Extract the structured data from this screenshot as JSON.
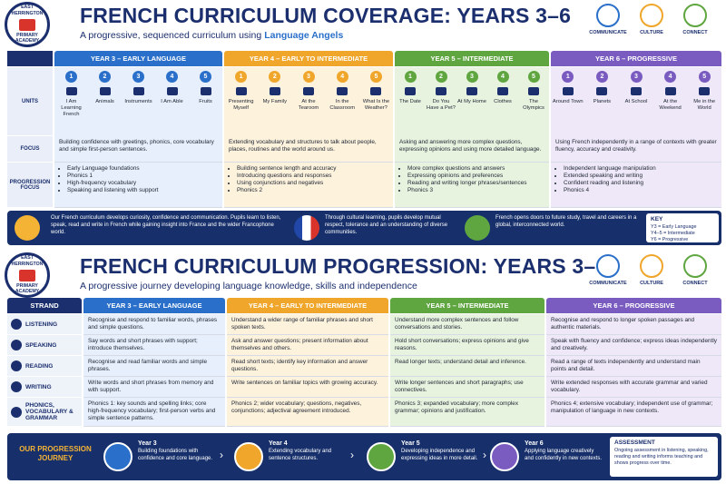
{
  "coverage": {
    "logo": [
      "EAST HERRINGTON",
      "PRIMARY ACADEMY"
    ],
    "title": "FRENCH CURRICULUM COVERAGE: YEARS 3–6",
    "subtitle": "A progressive, sequenced curriculum using",
    "subtitle_highlight": "Language Angels",
    "icons": [
      "COMMUNICATE",
      "CULTURE",
      "CONNECT"
    ],
    "row_labels": [
      "UNITS",
      "FOCUS",
      "PROGRESSION FOCUS"
    ],
    "years": [
      {
        "heading": "YEAR 3 – EARLY LANGUAGE",
        "units": [
          {
            "number": 1,
            "name": "I Am Learning French"
          },
          {
            "number": 2,
            "name": "Animals"
          },
          {
            "number": 3,
            "name": "Instruments"
          },
          {
            "number": 4,
            "name": "I Am Able"
          },
          {
            "number": 5,
            "name": "Fruits"
          }
        ],
        "focus": "Building confidence with greetings, phonics, core vocabulary and simple first-person sentences.",
        "progression": [
          "Early Language foundations",
          "Phonics 1",
          "High-frequency vocabulary",
          "Speaking and listening with support"
        ]
      },
      {
        "heading": "YEAR 4 – EARLY TO INTERMEDIATE",
        "units": [
          {
            "number": 1,
            "name": "Presenting Myself"
          },
          {
            "number": 2,
            "name": "My Family"
          },
          {
            "number": 3,
            "name": "At the Tearoom"
          },
          {
            "number": 4,
            "name": "In the Classroom"
          },
          {
            "number": 5,
            "name": "What Is the Weather?"
          }
        ],
        "focus": "Extending vocabulary and structures to talk about people, places, routines and the world around us.",
        "progression": [
          "Building sentence length and accuracy",
          "Introducing questions and responses",
          "Using conjunctions and negatives",
          "Phonics 2"
        ]
      },
      {
        "heading": "YEAR 5 – INTERMEDIATE",
        "units": [
          {
            "number": 1,
            "name": "The Date"
          },
          {
            "number": 2,
            "name": "Do You Have a Pet?"
          },
          {
            "number": 3,
            "name": "At My Home"
          },
          {
            "number": 4,
            "name": "Clothes"
          },
          {
            "number": 5,
            "name": "The Olympics"
          }
        ],
        "focus": "Asking and answering more complex questions, expressing opinions and using more detailed language.",
        "progression": [
          "More complex questions and answers",
          "Expressing opinions and preferences",
          "Reading and writing longer phrases/sentences",
          "Phonics 3"
        ]
      },
      {
        "heading": "YEAR 6 – PROGRESSIVE",
        "units": [
          {
            "number": 1,
            "name": "Around Town"
          },
          {
            "number": 2,
            "name": "Planets"
          },
          {
            "number": 3,
            "name": "At School"
          },
          {
            "number": 4,
            "name": "At the Weekend"
          },
          {
            "number": 5,
            "name": "Me in the World"
          }
        ],
        "focus": "Using French independently in a range of contexts with greater fluency, accuracy and creativity.",
        "progression": [
          "Independent language manipulation",
          "Extended speaking and writing",
          "Confident reading and listening",
          "Phonics 4"
        ]
      }
    ],
    "statements": [
      "Our French curriculum develops curiosity, confidence and communication. Pupils learn to listen, speak, read and write in French while gaining insight into France and the wider Francophone world.",
      "Through cultural learning, pupils develop mutual respect, tolerance and an understanding of diverse communities.",
      "French opens doors to future study, travel and careers in a global, interconnected world."
    ],
    "key": {
      "title": "KEY",
      "items": [
        "Y3 = Early Language",
        "Y4–5 = Intermediate",
        "Y6 = Progressive"
      ]
    }
  },
  "progression": {
    "logo": [
      "EAST HERRINGTON",
      "PRIMARY ACADEMY"
    ],
    "title": "FRENCH CURRICULUM PROGRESSION: YEARS 3–6",
    "subtitle": "A progressive journey developing language knowledge, skills and independence",
    "icons": [
      "COMMUNICATE",
      "CULTURE",
      "CONNECT"
    ],
    "strand_label": "STRAND",
    "years": [
      "YEAR 3 – EARLY LANGUAGE",
      "YEAR 4 – EARLY TO INTERMEDIATE",
      "YEAR 5 – INTERMEDIATE",
      "YEAR 6 – PROGRESSIVE"
    ],
    "strands": [
      {
        "name": "LISTENING",
        "cells": [
          "Recognise and respond to familiar words, phrases and simple questions.",
          "Understand a wider range of familiar phrases and short spoken texts.",
          "Understand more complex sentences and follow conversations and stories.",
          "Recognise and respond to longer spoken passages and authentic materials."
        ]
      },
      {
        "name": "SPEAKING",
        "cells": [
          "Say words and short phrases with support; introduce themselves.",
          "Ask and answer questions; present information about themselves and others.",
          "Hold short conversations; express opinions and give reasons.",
          "Speak with fluency and confidence; express ideas independently and creatively."
        ]
      },
      {
        "name": "READING",
        "cells": [
          "Recognise and read familiar words and simple phrases.",
          "Read short texts; identify key information and answer questions.",
          "Read longer texts; understand detail and inference.",
          "Read a range of texts independently and understand main points and detail."
        ]
      },
      {
        "name": "WRITING",
        "cells": [
          "Write words and short phrases from memory and with support.",
          "Write sentences on familiar topics with growing accuracy.",
          "Write longer sentences and short paragraphs; use connectives.",
          "Write extended responses with accurate grammar and varied vocabulary."
        ]
      },
      {
        "name": "PHONICS, VOCABULARY & GRAMMAR",
        "cells": [
          "Phonics 1: key sounds and spelling links; core high-frequency vocabulary; first-person verbs and simple sentence patterns.",
          "Phonics 2; wider vocabulary; questions, negatives, conjunctions; adjectival agreement introduced.",
          "Phonics 3; expanded vocabulary; more complex grammar; opinions and justification.",
          "Phonics 4; extensive vocabulary; independent use of grammar; manipulation of language in new contexts."
        ]
      }
    ],
    "journey": {
      "title": "OUR PROGRESSION JOURNEY",
      "steps": [
        {
          "year": "Year 3",
          "text": "Building foundations with confidence and core language."
        },
        {
          "year": "Year 4",
          "text": "Extending vocabulary and sentence structures."
        },
        {
          "year": "Year 5",
          "text": "Developing independence and expressing ideas in more detail."
        },
        {
          "year": "Year 6",
          "text": "Applying language creatively and confidently in new contexts."
        }
      ],
      "assessment": {
        "title": "ASSESSMENT",
        "text": "Ongoing assessment in listening, speaking, reading and writing informs teaching and shows progress over time."
      }
    }
  }
}
